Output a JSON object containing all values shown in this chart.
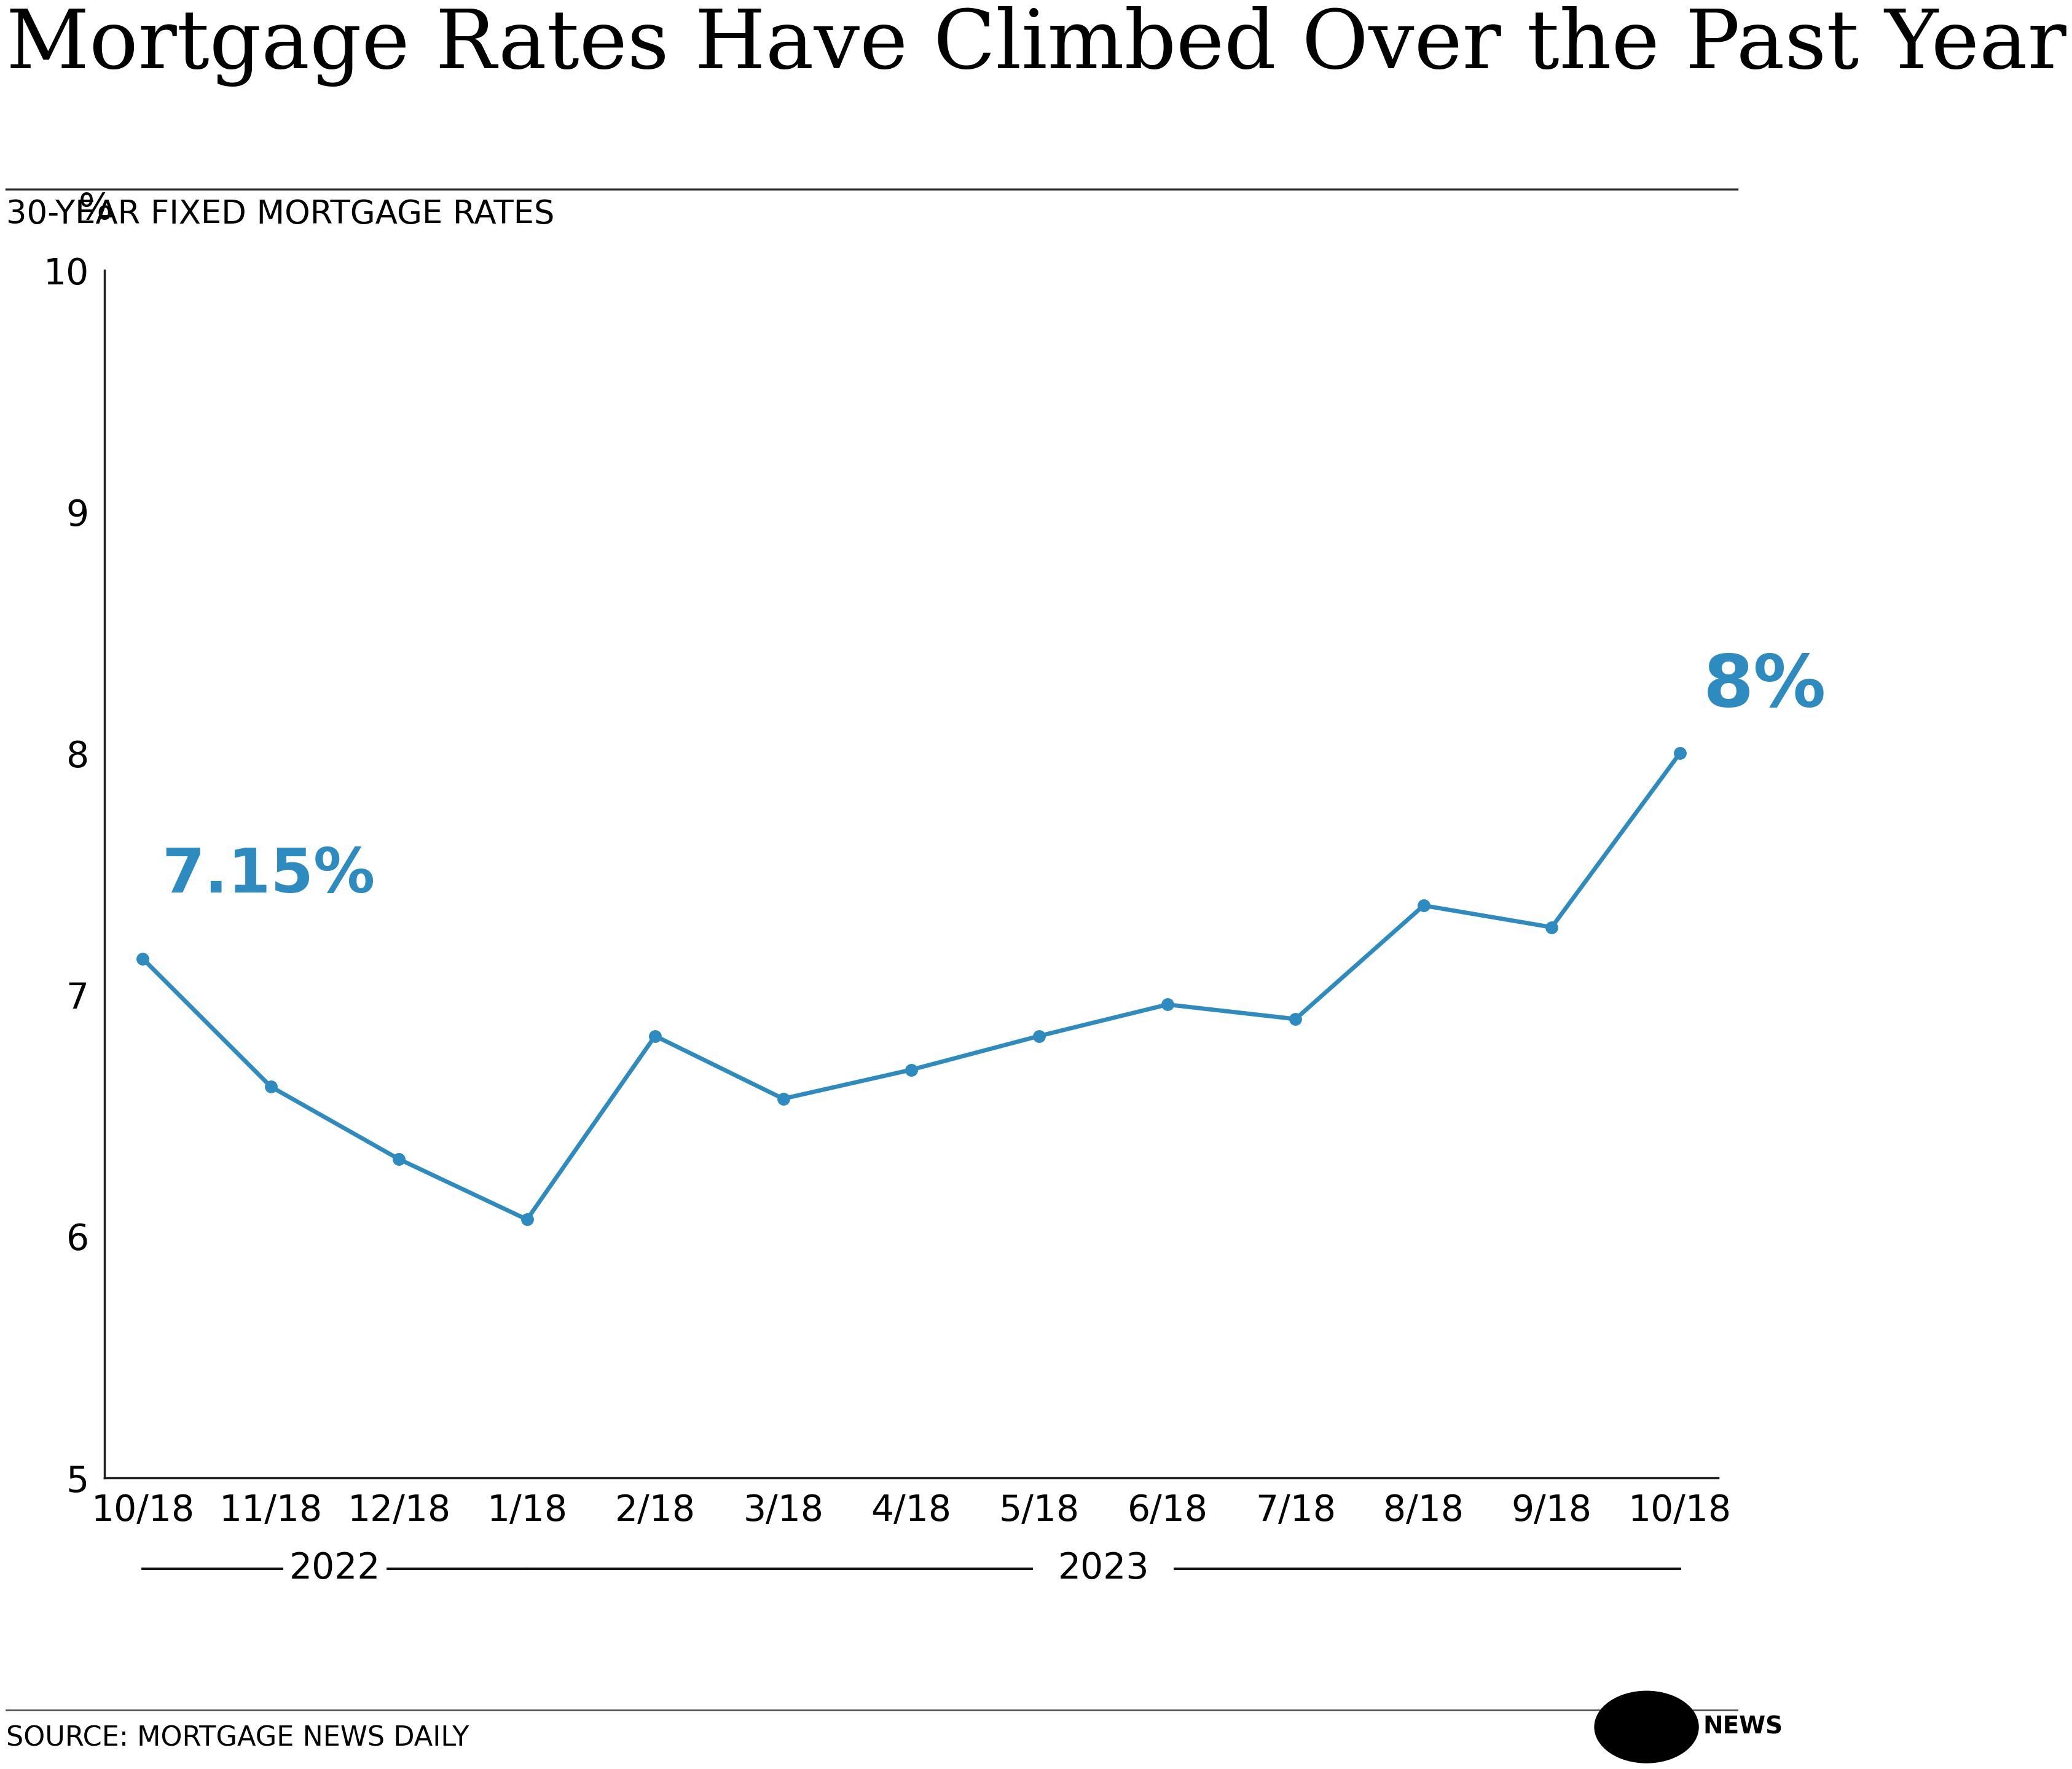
{
  "title": "Mortgage Rates Have Climbed Over the Past Year",
  "subtitle": "30-YEAR FIXED MORTGAGE RATES",
  "ylabel": "%",
  "source": "SOURCE: MORTGAGE NEWS DAILY",
  "x_labels": [
    "10/18",
    "11/18",
    "12/18",
    "1/18",
    "2/18",
    "3/18",
    "4/18",
    "5/18",
    "6/18",
    "7/18",
    "8/18",
    "9/18",
    "10/18"
  ],
  "y_values": [
    7.15,
    6.62,
    6.32,
    6.07,
    6.83,
    6.57,
    6.69,
    6.83,
    6.96,
    6.9,
    7.37,
    7.28,
    8.0
  ],
  "ylim": [
    5,
    10
  ],
  "yticks": [
    5,
    6,
    7,
    8,
    9,
    10
  ],
  "line_color": "#2e8bc0",
  "marker_color": "#2e8bc0",
  "annotation_first": "7.15%",
  "annotation_last": "8%",
  "annotation_color": "#2e8bc0",
  "background_color": "#ffffff",
  "title_fontsize": 95,
  "subtitle_fontsize": 38,
  "axis_label_fontsize": 42,
  "tick_fontsize": 42,
  "annotation_fontsize_first": 72,
  "annotation_fontsize_last": 85,
  "source_fontsize": 32,
  "year_fontsize": 42,
  "line_width": 5,
  "marker_size": 14
}
